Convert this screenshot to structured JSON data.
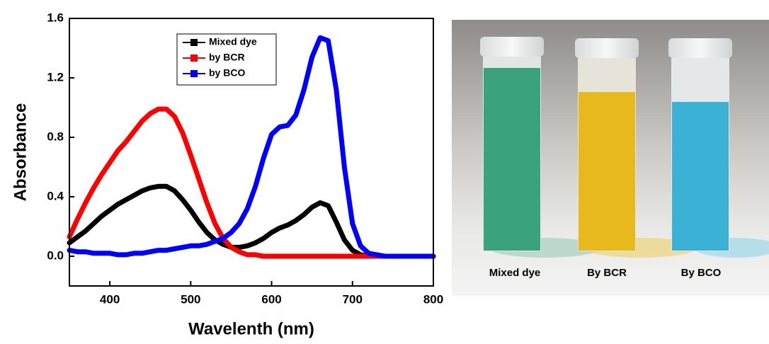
{
  "chart_data": {
    "type": "line",
    "x_label": "Wavelenth (nm)",
    "y_label": "Absorbance",
    "xlim": [
      350,
      800
    ],
    "xticks": [
      400,
      500,
      600,
      700,
      800
    ],
    "ylim": [
      -0.2,
      1.6
    ],
    "yticks": [
      {
        "value": 0,
        "label": "0.0"
      },
      0.4,
      0.8,
      1.2,
      1.6
    ],
    "legend": "upper center",
    "x": [
      350,
      360,
      370,
      380,
      390,
      400,
      410,
      420,
      430,
      440,
      450,
      460,
      470,
      480,
      490,
      500,
      510,
      520,
      530,
      540,
      550,
      560,
      570,
      580,
      590,
      600,
      610,
      620,
      630,
      640,
      650,
      660,
      670,
      680,
      690,
      700,
      710,
      720,
      730,
      740,
      750,
      760,
      770,
      780,
      790,
      800
    ],
    "series": [
      {
        "name": "Mixed dye",
        "color": "#000000",
        "values": [
          0.09,
          0.13,
          0.17,
          0.22,
          0.27,
          0.31,
          0.35,
          0.38,
          0.41,
          0.44,
          0.46,
          0.47,
          0.47,
          0.44,
          0.38,
          0.31,
          0.23,
          0.16,
          0.11,
          0.08,
          0.06,
          0.06,
          0.07,
          0.09,
          0.12,
          0.16,
          0.19,
          0.21,
          0.24,
          0.28,
          0.33,
          0.36,
          0.34,
          0.23,
          0.11,
          0.04,
          0.01,
          0,
          0,
          0,
          0,
          0,
          0,
          0,
          0,
          0
        ]
      },
      {
        "name": "by BCR",
        "color": "#ff0000",
        "values": [
          0.13,
          0.25,
          0.36,
          0.46,
          0.55,
          0.63,
          0.71,
          0.77,
          0.84,
          0.91,
          0.96,
          0.99,
          0.99,
          0.94,
          0.83,
          0.68,
          0.52,
          0.36,
          0.22,
          0.12,
          0.06,
          0.03,
          0.01,
          0.01,
          0,
          0,
          0,
          0,
          0,
          0,
          0,
          0,
          0,
          0,
          0,
          0,
          0,
          0,
          0,
          0,
          0,
          0,
          0,
          0,
          0,
          0
        ]
      },
      {
        "name": "by BCO",
        "color": "#0000ff",
        "values": [
          0.04,
          0.03,
          0.03,
          0.02,
          0.02,
          0.02,
          0.01,
          0.01,
          0.02,
          0.02,
          0.03,
          0.04,
          0.04,
          0.05,
          0.06,
          0.07,
          0.07,
          0.08,
          0.1,
          0.12,
          0.16,
          0.22,
          0.32,
          0.47,
          0.66,
          0.82,
          0.87,
          0.88,
          0.95,
          1.12,
          1.34,
          1.47,
          1.45,
          1.12,
          0.6,
          0.22,
          0.07,
          0.02,
          0.01,
          0,
          0,
          0,
          0,
          0,
          0,
          0
        ]
      }
    ]
  },
  "photo": {
    "labels": [
      "Mixed dye",
      "By BCR",
      "By BCO"
    ]
  }
}
